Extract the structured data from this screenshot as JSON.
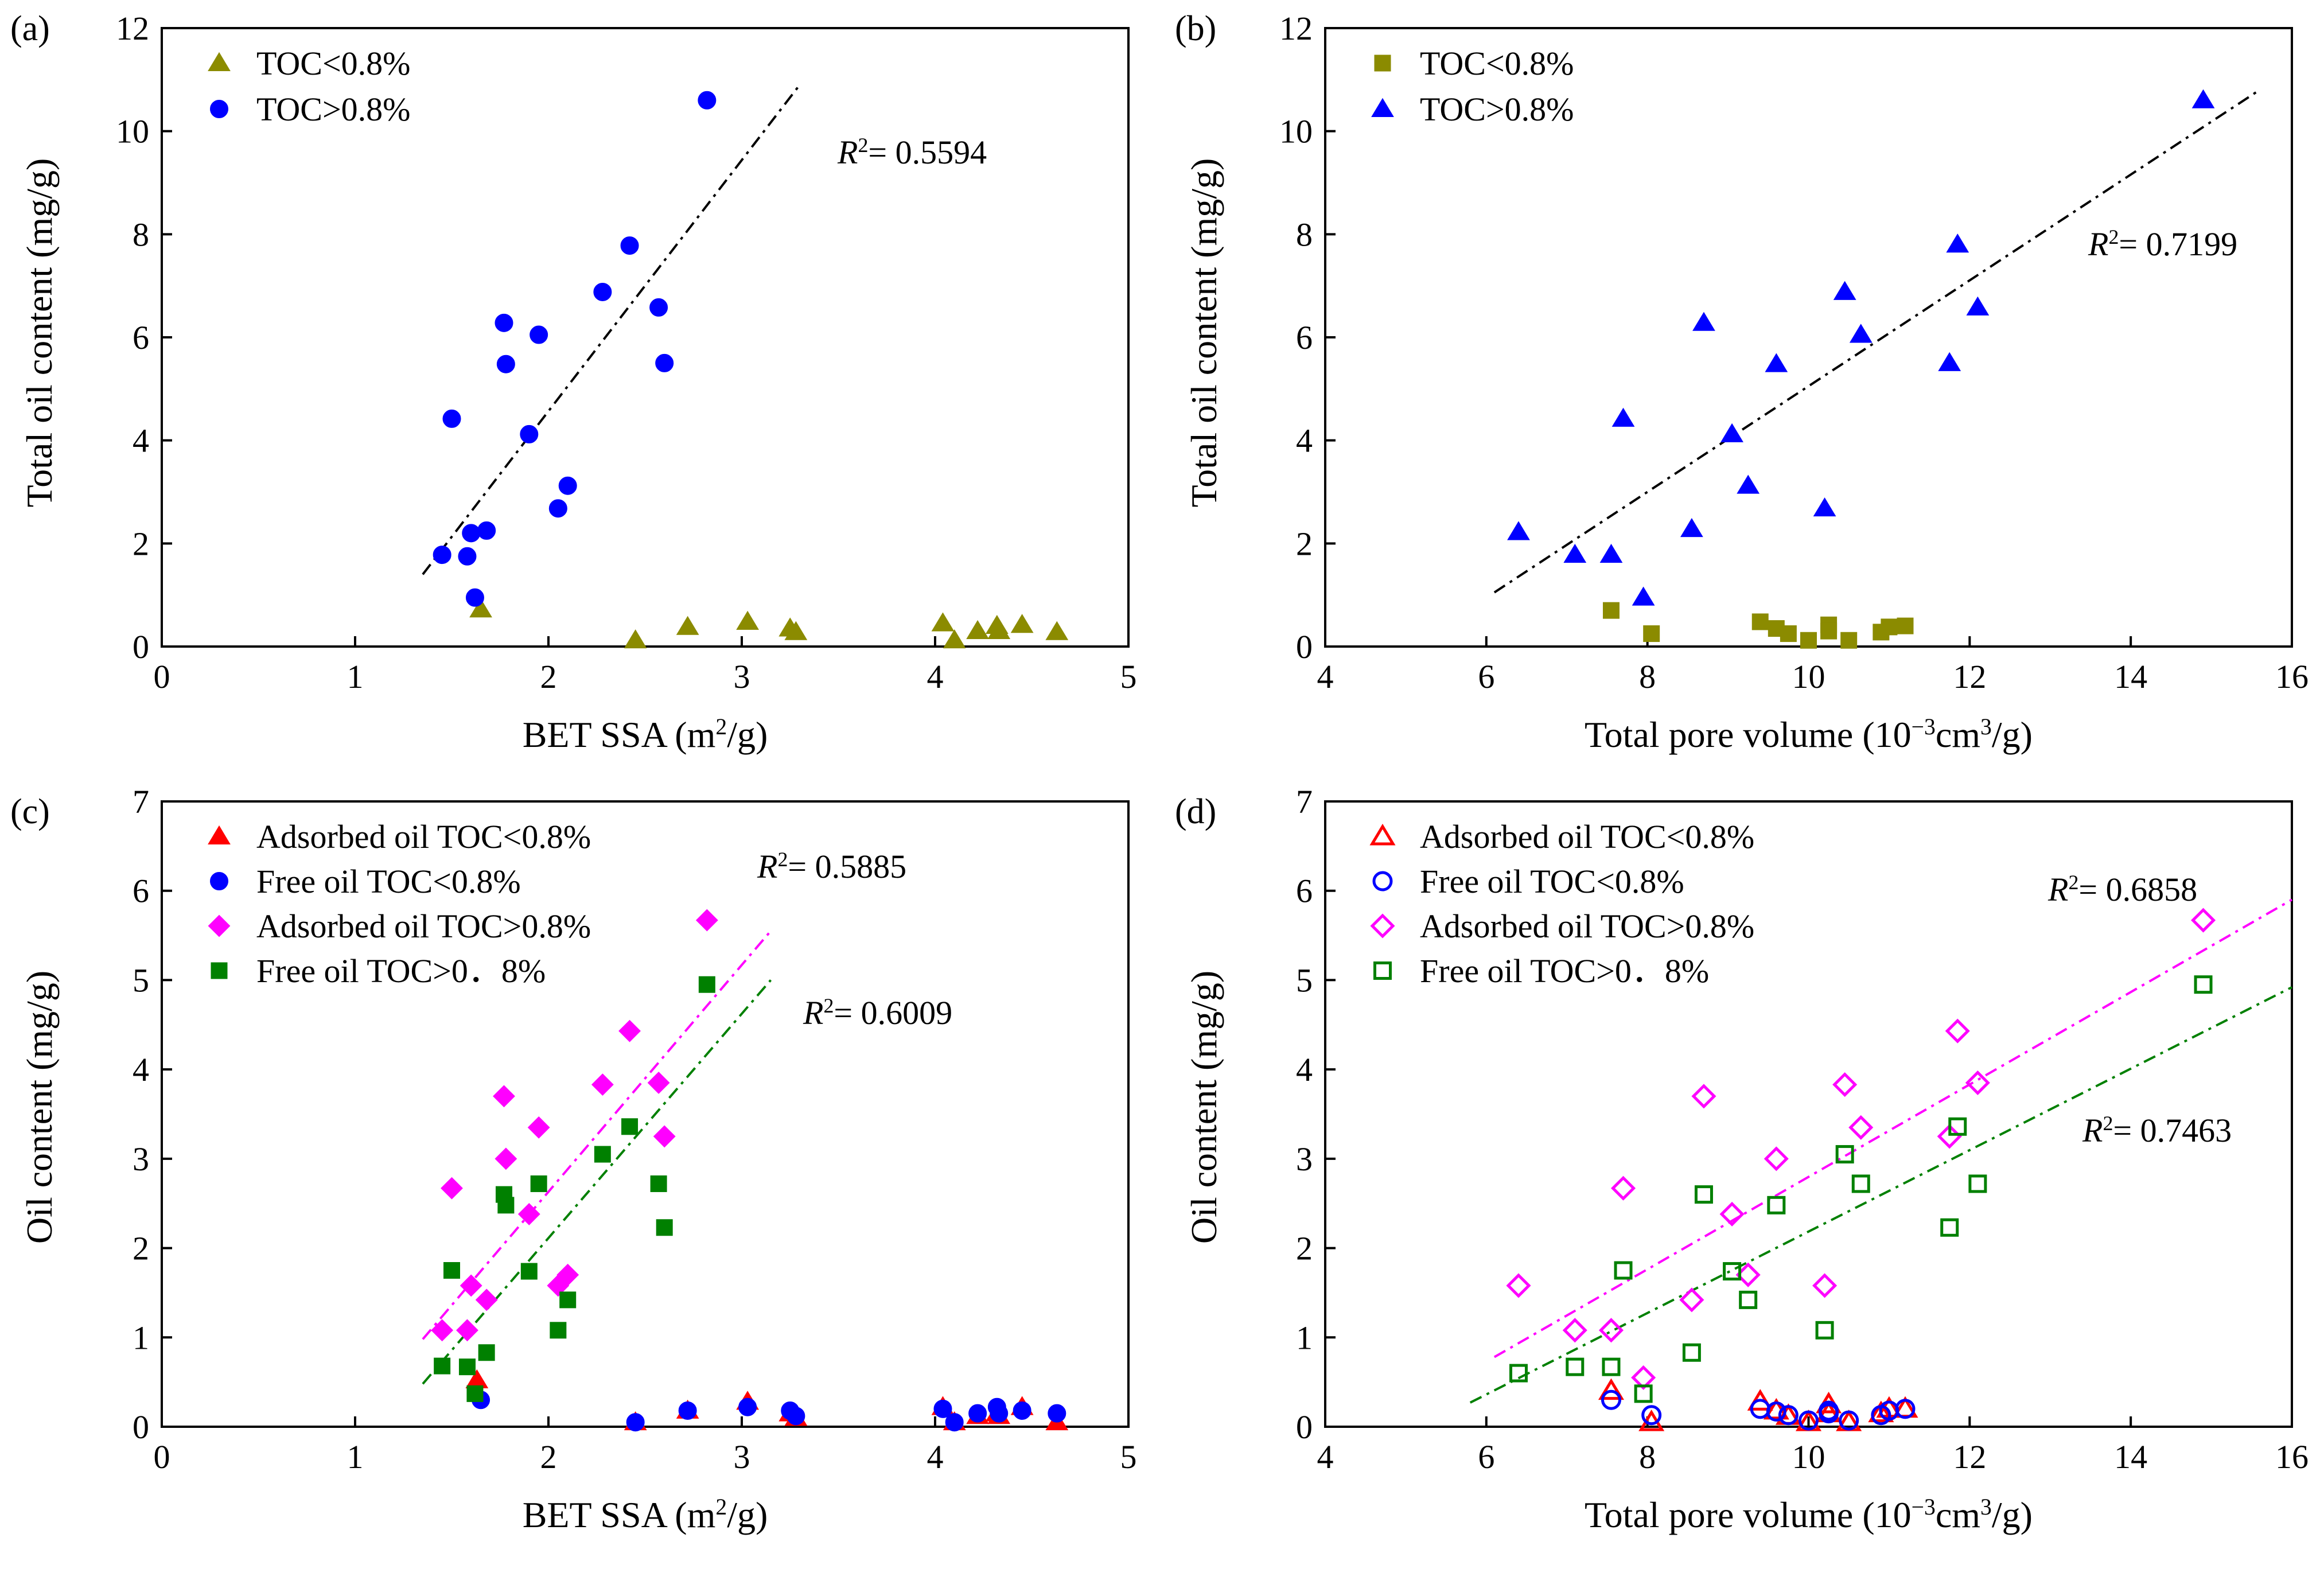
{
  "colors": {
    "olive": "#8B8B00",
    "blue": "#0000FF",
    "red": "#FF0000",
    "magenta": "#FF00FF",
    "green": "#008000",
    "black": "#000000"
  },
  "chart_data": [
    {
      "panel": "(a)",
      "type": "scatter",
      "xlabel": "BET SSA (m²/g)",
      "ylabel": "Total oil content (mg/g)",
      "xlim": [
        0,
        5
      ],
      "ylim": [
        0,
        12
      ],
      "xticks": [
        0,
        1,
        2,
        3,
        4,
        5
      ],
      "yticks": [
        0,
        2,
        4,
        6,
        8,
        10,
        12
      ],
      "series": [
        {
          "name": "TOC<0.8%",
          "marker": "triangle",
          "filled": true,
          "color": "#8B8B00",
          "points": [
            [
              1.65,
              0.72
            ],
            [
              2.45,
              0.12
            ],
            [
              2.72,
              0.38
            ],
            [
              3.03,
              0.48
            ],
            [
              3.25,
              0.35
            ],
            [
              3.28,
              0.28
            ],
            [
              4.04,
              0.45
            ],
            [
              4.1,
              0.12
            ],
            [
              4.22,
              0.3
            ],
            [
              4.32,
              0.4
            ],
            [
              4.33,
              0.3
            ],
            [
              4.45,
              0.42
            ],
            [
              4.63,
              0.28
            ]
          ]
        },
        {
          "name": "TOC>0.8%",
          "marker": "circle",
          "filled": true,
          "color": "#0000FF",
          "points": [
            [
              1.45,
              1.78
            ],
            [
              1.5,
              4.42
            ],
            [
              1.58,
              1.75
            ],
            [
              1.6,
              2.2
            ],
            [
              1.62,
              0.95
            ],
            [
              1.68,
              2.25
            ],
            [
              1.77,
              6.28
            ],
            [
              1.78,
              5.48
            ],
            [
              1.9,
              4.12
            ],
            [
              1.95,
              6.05
            ],
            [
              2.05,
              2.68
            ],
            [
              2.1,
              3.12
            ],
            [
              2.28,
              6.88
            ],
            [
              2.42,
              7.78
            ],
            [
              2.57,
              6.58
            ],
            [
              2.6,
              5.5
            ],
            [
              2.82,
              10.6
            ]
          ]
        }
      ],
      "fits": [
        {
          "label": "R²= 0.5594",
          "color": "#000000",
          "x1": 1.35,
          "y1": 1.4,
          "x2": 3.3,
          "y2": 10.9
        }
      ]
    },
    {
      "panel": "(b)",
      "type": "scatter",
      "xlabel": "Total pore volume (10⁻³cm³/g)",
      "ylabel": "Total oil content (mg/g)",
      "xlim": [
        4,
        16
      ],
      "ylim": [
        0,
        12
      ],
      "xticks": [
        4,
        6,
        8,
        10,
        12,
        14,
        16
      ],
      "yticks": [
        0,
        2,
        4,
        6,
        8,
        10,
        12
      ],
      "series": [
        {
          "name": "TOC<0.8%",
          "marker": "square",
          "filled": true,
          "color": "#8B8B00",
          "points": [
            [
              7.55,
              0.7
            ],
            [
              8.05,
              0.25
            ],
            [
              9.4,
              0.48
            ],
            [
              9.6,
              0.35
            ],
            [
              9.75,
              0.25
            ],
            [
              10.0,
              0.12
            ],
            [
              10.25,
              0.42
            ],
            [
              10.25,
              0.3
            ],
            [
              10.5,
              0.12
            ],
            [
              10.9,
              0.28
            ],
            [
              11.0,
              0.38
            ],
            [
              11.2,
              0.4
            ]
          ]
        },
        {
          "name": "TOC>0.8%",
          "marker": "triangle",
          "filled": true,
          "color": "#0000FF",
          "points": [
            [
              6.4,
              2.22
            ],
            [
              7.1,
              1.78
            ],
            [
              7.55,
              1.78
            ],
            [
              7.7,
              4.42
            ],
            [
              7.95,
              0.95
            ],
            [
              8.7,
              6.28
            ],
            [
              8.55,
              2.28
            ],
            [
              9.05,
              4.12
            ],
            [
              9.25,
              3.12
            ],
            [
              9.6,
              5.48
            ],
            [
              10.2,
              2.68
            ],
            [
              10.45,
              6.88
            ],
            [
              10.65,
              6.05
            ],
            [
              11.75,
              5.5
            ],
            [
              11.85,
              7.8
            ],
            [
              12.1,
              6.58
            ],
            [
              14.9,
              10.6
            ]
          ]
        }
      ],
      "fits": [
        {
          "label": "R²= 0.7199",
          "color": "#000000",
          "x1": 6.1,
          "y1": 1.05,
          "x2": 15.6,
          "y2": 10.8
        }
      ]
    },
    {
      "panel": "(c)",
      "type": "scatter",
      "xlabel": "BET SSA (m²/g)",
      "ylabel": "Oil content (mg/g)",
      "xlim": [
        0,
        5
      ],
      "ylim": [
        0,
        7
      ],
      "xticks": [
        0,
        1,
        2,
        3,
        4,
        5
      ],
      "yticks": [
        0,
        1,
        2,
        3,
        4,
        5,
        6,
        7
      ],
      "series": [
        {
          "name": "Adsorbed  oil  TOC<0.8%",
          "marker": "triangle",
          "filled": true,
          "color": "#FF0000",
          "points": [
            [
              1.63,
              0.52
            ],
            [
              2.45,
              0.05
            ],
            [
              2.72,
              0.18
            ],
            [
              3.03,
              0.28
            ],
            [
              3.25,
              0.15
            ],
            [
              3.28,
              0.1
            ],
            [
              4.04,
              0.22
            ],
            [
              4.1,
              0.05
            ],
            [
              4.22,
              0.12
            ],
            [
              4.32,
              0.15
            ],
            [
              4.33,
              0.12
            ],
            [
              4.45,
              0.22
            ],
            [
              4.63,
              0.05
            ]
          ]
        },
        {
          "name": "Free oil TOC<0.8%",
          "marker": "circle",
          "filled": true,
          "color": "#0000FF",
          "points": [
            [
              1.65,
              0.3
            ],
            [
              2.45,
              0.05
            ],
            [
              2.72,
              0.18
            ],
            [
              3.03,
              0.22
            ],
            [
              3.25,
              0.18
            ],
            [
              3.28,
              0.12
            ],
            [
              4.04,
              0.2
            ],
            [
              4.1,
              0.05
            ],
            [
              4.22,
              0.15
            ],
            [
              4.32,
              0.22
            ],
            [
              4.33,
              0.15
            ],
            [
              4.45,
              0.18
            ],
            [
              4.63,
              0.15
            ]
          ]
        },
        {
          "name": "Adsorbed oil TOC>0.8%",
          "marker": "diamond",
          "filled": true,
          "color": "#FF00FF",
          "points": [
            [
              1.45,
              1.08
            ],
            [
              1.5,
              2.67
            ],
            [
              1.58,
              1.08
            ],
            [
              1.6,
              1.58
            ],
            [
              1.68,
              1.42
            ],
            [
              1.77,
              3.7
            ],
            [
              1.78,
              3.0
            ],
            [
              1.9,
              2.38
            ],
            [
              1.95,
              3.35
            ],
            [
              2.05,
              1.58
            ],
            [
              2.1,
              1.7
            ],
            [
              2.28,
              3.83
            ],
            [
              2.42,
              4.43
            ],
            [
              2.57,
              3.85
            ],
            [
              2.6,
              3.25
            ],
            [
              2.82,
              5.67
            ]
          ]
        },
        {
          "name": "Free oil TOC>0．8%",
          "marker": "square",
          "filled": true,
          "color": "#008000",
          "points": [
            [
              1.45,
              0.68
            ],
            [
              1.5,
              1.75
            ],
            [
              1.58,
              0.67
            ],
            [
              1.62,
              0.37
            ],
            [
              1.68,
              0.83
            ],
            [
              1.77,
              2.6
            ],
            [
              1.78,
              2.48
            ],
            [
              1.9,
              1.74
            ],
            [
              1.95,
              2.72
            ],
            [
              2.05,
              1.08
            ],
            [
              2.1,
              1.42
            ],
            [
              2.28,
              3.05
            ],
            [
              2.42,
              3.36
            ],
            [
              2.57,
              2.72
            ],
            [
              2.6,
              2.23
            ],
            [
              2.82,
              4.95
            ]
          ]
        }
      ],
      "fits": [
        {
          "label": "R²= 0.5885",
          "color": "#FF00FF",
          "x1": 1.35,
          "y1": 0.98,
          "x2": 3.15,
          "y2": 5.55
        },
        {
          "label": "R²= 0.6009",
          "color": "#008000",
          "x1": 1.35,
          "y1": 0.48,
          "x2": 3.15,
          "y2": 5.0
        }
      ]
    },
    {
      "panel": "(d)",
      "type": "scatter",
      "xlabel": "Total pore volume (10⁻³cm³/g)",
      "ylabel": "Oil content (mg/g)",
      "xlim": [
        4,
        16
      ],
      "ylim": [
        0,
        7
      ],
      "xticks": [
        4,
        6,
        8,
        10,
        12,
        14,
        16
      ],
      "yticks": [
        0,
        1,
        2,
        3,
        4,
        5,
        6,
        7
      ],
      "series": [
        {
          "name": "Adsorbed  oil  TOC<0.8%",
          "marker": "triangle",
          "filled": false,
          "color": "#FF0000",
          "points": [
            [
              7.55,
              0.4
            ],
            [
              8.05,
              0.05
            ],
            [
              9.4,
              0.28
            ],
            [
              9.6,
              0.18
            ],
            [
              9.75,
              0.12
            ],
            [
              10.0,
              0.05
            ],
            [
              10.25,
              0.25
            ],
            [
              10.25,
              0.15
            ],
            [
              10.5,
              0.05
            ],
            [
              10.9,
              0.15
            ],
            [
              11.0,
              0.2
            ],
            [
              11.2,
              0.2
            ]
          ]
        },
        {
          "name": "Free oil TOC<0.8%",
          "marker": "circle",
          "filled": false,
          "color": "#0000FF",
          "points": [
            [
              7.55,
              0.3
            ],
            [
              8.05,
              0.13
            ],
            [
              9.4,
              0.2
            ],
            [
              9.6,
              0.17
            ],
            [
              9.75,
              0.13
            ],
            [
              10.0,
              0.07
            ],
            [
              10.25,
              0.18
            ],
            [
              10.25,
              0.15
            ],
            [
              10.5,
              0.07
            ],
            [
              10.9,
              0.13
            ],
            [
              11.0,
              0.18
            ],
            [
              11.2,
              0.2
            ]
          ]
        },
        {
          "name": "Adsorbed oil TOC>0.8%",
          "marker": "diamond",
          "filled": false,
          "color": "#FF00FF",
          "points": [
            [
              6.4,
              1.58
            ],
            [
              7.1,
              1.08
            ],
            [
              7.55,
              1.08
            ],
            [
              7.7,
              2.67
            ],
            [
              7.95,
              0.55
            ],
            [
              8.7,
              3.7
            ],
            [
              8.55,
              1.42
            ],
            [
              9.05,
              2.38
            ],
            [
              9.25,
              1.7
            ],
            [
              9.6,
              3.0
            ],
            [
              10.2,
              1.58
            ],
            [
              10.45,
              3.83
            ],
            [
              10.65,
              3.35
            ],
            [
              11.75,
              3.25
            ],
            [
              11.85,
              4.43
            ],
            [
              12.1,
              3.85
            ],
            [
              14.9,
              5.67
            ]
          ]
        },
        {
          "name": "Free oil TOC>0．8%",
          "marker": "square",
          "filled": false,
          "color": "#008000",
          "points": [
            [
              6.4,
              0.6
            ],
            [
              7.1,
              0.67
            ],
            [
              7.55,
              0.67
            ],
            [
              7.7,
              1.75
            ],
            [
              7.95,
              0.37
            ],
            [
              8.7,
              2.6
            ],
            [
              8.55,
              0.83
            ],
            [
              9.05,
              1.74
            ],
            [
              9.25,
              1.42
            ],
            [
              9.6,
              2.48
            ],
            [
              10.2,
              1.08
            ],
            [
              10.45,
              3.05
            ],
            [
              10.65,
              2.72
            ],
            [
              11.75,
              2.23
            ],
            [
              11.85,
              3.36
            ],
            [
              12.1,
              2.72
            ],
            [
              14.9,
              4.95
            ]
          ]
        }
      ],
      "fits": [
        {
          "label": "R²= 0.6858",
          "color": "#FF00FF",
          "x1": 6.1,
          "y1": 0.78,
          "x2": 16.0,
          "y2": 5.9
        },
        {
          "label": "R²= 0.7463",
          "color": "#008000",
          "x1": 5.8,
          "y1": 0.27,
          "x2": 16.0,
          "y2": 4.92
        }
      ]
    }
  ]
}
